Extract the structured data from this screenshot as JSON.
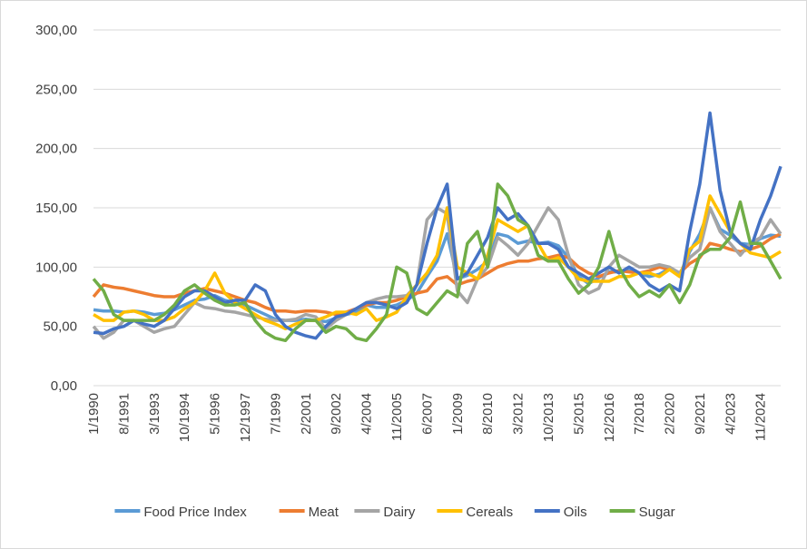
{
  "chart_data": {
    "type": "line",
    "categories": [
      "1/1990",
      null,
      null,
      "8/1991",
      null,
      null,
      "3/1993",
      null,
      null,
      "10/1994",
      null,
      null,
      "5/1996",
      null,
      null,
      "12/1997",
      null,
      null,
      "7/1999",
      null,
      null,
      "2/2001",
      null,
      null,
      "9/2002",
      null,
      null,
      "4/2004",
      null,
      null,
      "11/2005",
      null,
      null,
      "6/2007",
      null,
      null,
      "1/2009",
      null,
      null,
      "8/2010",
      null,
      null,
      "3/2012",
      null,
      null,
      "10/2013",
      null,
      null,
      "5/2015",
      null,
      null,
      "12/2016",
      null,
      null,
      "7/2018",
      null,
      null,
      "2/2020",
      null,
      null,
      "9/2021",
      null,
      null,
      "4/2023",
      null,
      null,
      "11/2024",
      null,
      null
    ],
    "series": [
      {
        "name": "Food Price Index",
        "color": "#5b9bd5",
        "values": [
          64,
          63,
          63,
          62,
          63,
          62,
          60,
          61,
          64,
          68,
          72,
          73,
          76,
          72,
          70,
          68,
          64,
          60,
          56,
          55,
          55,
          56,
          55,
          54,
          57,
          60,
          62,
          68,
          66,
          66,
          68,
          72,
          78,
          92,
          105,
          128,
          90,
          93,
          98,
          105,
          128,
          126,
          120,
          122,
          120,
          121,
          118,
          108,
          92,
          86,
          91,
          96,
          96,
          97,
          95,
          92,
          94,
          99,
          93,
          113,
          128,
          150,
          132,
          127,
          120,
          119,
          124,
          127,
          126
        ]
      },
      {
        "name": "Meat",
        "color": "#ed7d31",
        "values": [
          75,
          85,
          83,
          82,
          80,
          78,
          76,
          75,
          75,
          78,
          80,
          82,
          80,
          78,
          75,
          72,
          70,
          66,
          63,
          63,
          62,
          63,
          63,
          62,
          60,
          62,
          65,
          68,
          70,
          70,
          72,
          75,
          78,
          80,
          90,
          92,
          85,
          88,
          90,
          95,
          100,
          103,
          105,
          105,
          107,
          108,
          110,
          108,
          100,
          95,
          92,
          95,
          97,
          96,
          95,
          97,
          100,
          98,
          95,
          103,
          108,
          120,
          118,
          115,
          113,
          115,
          118,
          124,
          128
        ]
      },
      {
        "name": "Dairy",
        "color": "#a5a5a5",
        "values": [
          50,
          40,
          45,
          55,
          55,
          50,
          45,
          48,
          50,
          60,
          70,
          66,
          65,
          63,
          62,
          60,
          58,
          56,
          55,
          55,
          56,
          60,
          58,
          48,
          55,
          60,
          65,
          70,
          73,
          75,
          75,
          76,
          85,
          140,
          150,
          145,
          80,
          70,
          90,
          100,
          125,
          118,
          110,
          120,
          135,
          150,
          140,
          110,
          85,
          78,
          82,
          100,
          110,
          105,
          100,
          100,
          102,
          100,
          95,
          108,
          115,
          150,
          130,
          120,
          110,
          120,
          125,
          140,
          128
        ]
      },
      {
        "name": "Cereals",
        "color": "#ffc000",
        "values": [
          60,
          55,
          55,
          62,
          63,
          60,
          55,
          55,
          58,
          65,
          70,
          80,
          95,
          78,
          70,
          65,
          60,
          55,
          52,
          48,
          52,
          55,
          55,
          58,
          62,
          62,
          60,
          65,
          55,
          58,
          62,
          75,
          85,
          95,
          110,
          150,
          100,
          95,
          90,
          110,
          140,
          135,
          130,
          135,
          120,
          105,
          108,
          100,
          90,
          88,
          88,
          88,
          92,
          92,
          95,
          95,
          92,
          98,
          92,
          115,
          122,
          160,
          145,
          130,
          120,
          112,
          110,
          108,
          113
        ]
      },
      {
        "name": "Oils",
        "color": "#4472c4",
        "values": [
          45,
          44,
          48,
          50,
          55,
          52,
          50,
          55,
          65,
          75,
          80,
          80,
          75,
          70,
          72,
          72,
          85,
          80,
          60,
          50,
          45,
          42,
          40,
          50,
          58,
          60,
          65,
          70,
          70,
          68,
          65,
          70,
          85,
          120,
          150,
          170,
          90,
          95,
          110,
          125,
          150,
          140,
          145,
          135,
          120,
          120,
          115,
          100,
          95,
          90,
          95,
          100,
          95,
          100,
          95,
          85,
          80,
          85,
          80,
          130,
          170,
          230,
          165,
          130,
          120,
          115,
          140,
          160,
          185
        ]
      },
      {
        "name": "Sugar",
        "color": "#70ad47",
        "values": [
          90,
          80,
          60,
          55,
          55,
          55,
          55,
          60,
          68,
          80,
          85,
          78,
          72,
          68,
          68,
          70,
          55,
          45,
          40,
          38,
          48,
          55,
          55,
          45,
          50,
          48,
          40,
          38,
          48,
          60,
          100,
          95,
          65,
          60,
          70,
          80,
          75,
          120,
          130,
          100,
          170,
          160,
          140,
          135,
          110,
          105,
          105,
          90,
          78,
          85,
          100,
          130,
          100,
          85,
          75,
          80,
          75,
          85,
          70,
          85,
          110,
          115,
          115,
          125,
          155,
          120,
          120,
          105,
          90
        ]
      }
    ],
    "ylim": [
      0,
      300
    ],
    "yticks": [
      {
        "value": 0,
        "label": "0,00"
      },
      {
        "value": 50,
        "label": "50,00"
      },
      {
        "value": 100,
        "label": "100,00"
      },
      {
        "value": 150,
        "label": "150,00"
      },
      {
        "value": 200,
        "label": "200,00"
      },
      {
        "value": 250,
        "label": "250,00"
      },
      {
        "value": 300,
        "label": "300,00"
      }
    ],
    "grid": true,
    "legend": "bottom"
  }
}
